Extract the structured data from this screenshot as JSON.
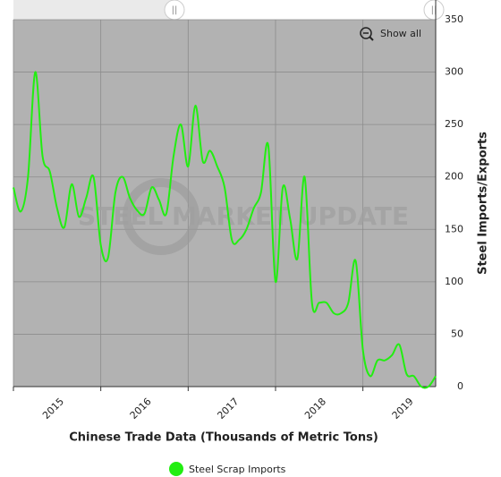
{
  "chart_data": {
    "type": "line",
    "watermark": "STEEL MARKET UPDATE",
    "show_all": "Show all",
    "x_label": "Chinese Trade Data (Thousands of Metric Tons)",
    "y_label": "Steel Imports/Exports",
    "x": [
      2015,
      2015.083,
      2015.167,
      2015.25,
      2015.333,
      2015.417,
      2015.5,
      2015.583,
      2015.667,
      2015.75,
      2015.833,
      2015.917,
      2016,
      2016.083,
      2016.167,
      2016.25,
      2016.333,
      2016.417,
      2016.5,
      2016.583,
      2016.667,
      2016.75,
      2016.833,
      2016.917,
      2017,
      2017.083,
      2017.167,
      2017.25,
      2017.333,
      2017.417,
      2017.5,
      2017.583,
      2017.667,
      2017.75,
      2017.833,
      2017.917,
      2018,
      2018.083,
      2018.167,
      2018.25,
      2018.333,
      2018.417,
      2018.5,
      2018.583,
      2018.667,
      2018.75,
      2018.833,
      2018.917,
      2019,
      2019.083,
      2019.167,
      2019.25,
      2019.333,
      2019.417,
      2019.5,
      2019.583,
      2019.667,
      2019.75,
      2019.833
    ],
    "series": [
      {
        "name": "Steel Scrap Imports",
        "color": "#22ee11",
        "values": [
          190,
          167,
          200,
          300,
          220,
          205,
          170,
          152,
          193,
          162,
          180,
          200,
          135,
          123,
          185,
          200,
          180,
          168,
          165,
          190,
          178,
          165,
          220,
          250,
          210,
          268,
          215,
          225,
          210,
          190,
          140,
          140,
          150,
          170,
          185,
          230,
          100,
          190,
          160,
          122,
          200,
          80,
          80,
          80,
          70,
          70,
          80,
          120,
          35,
          10,
          25,
          25,
          30,
          40,
          12,
          10,
          0,
          0,
          10
        ]
      }
    ],
    "xlim": [
      2015,
      2019.833
    ],
    "xticks": [
      2015,
      2016,
      2017,
      2018,
      2019
    ],
    "ylim": [
      0,
      350
    ],
    "yticks": [
      0,
      50,
      100,
      150,
      200,
      250,
      300,
      350
    ],
    "grid": true
  }
}
